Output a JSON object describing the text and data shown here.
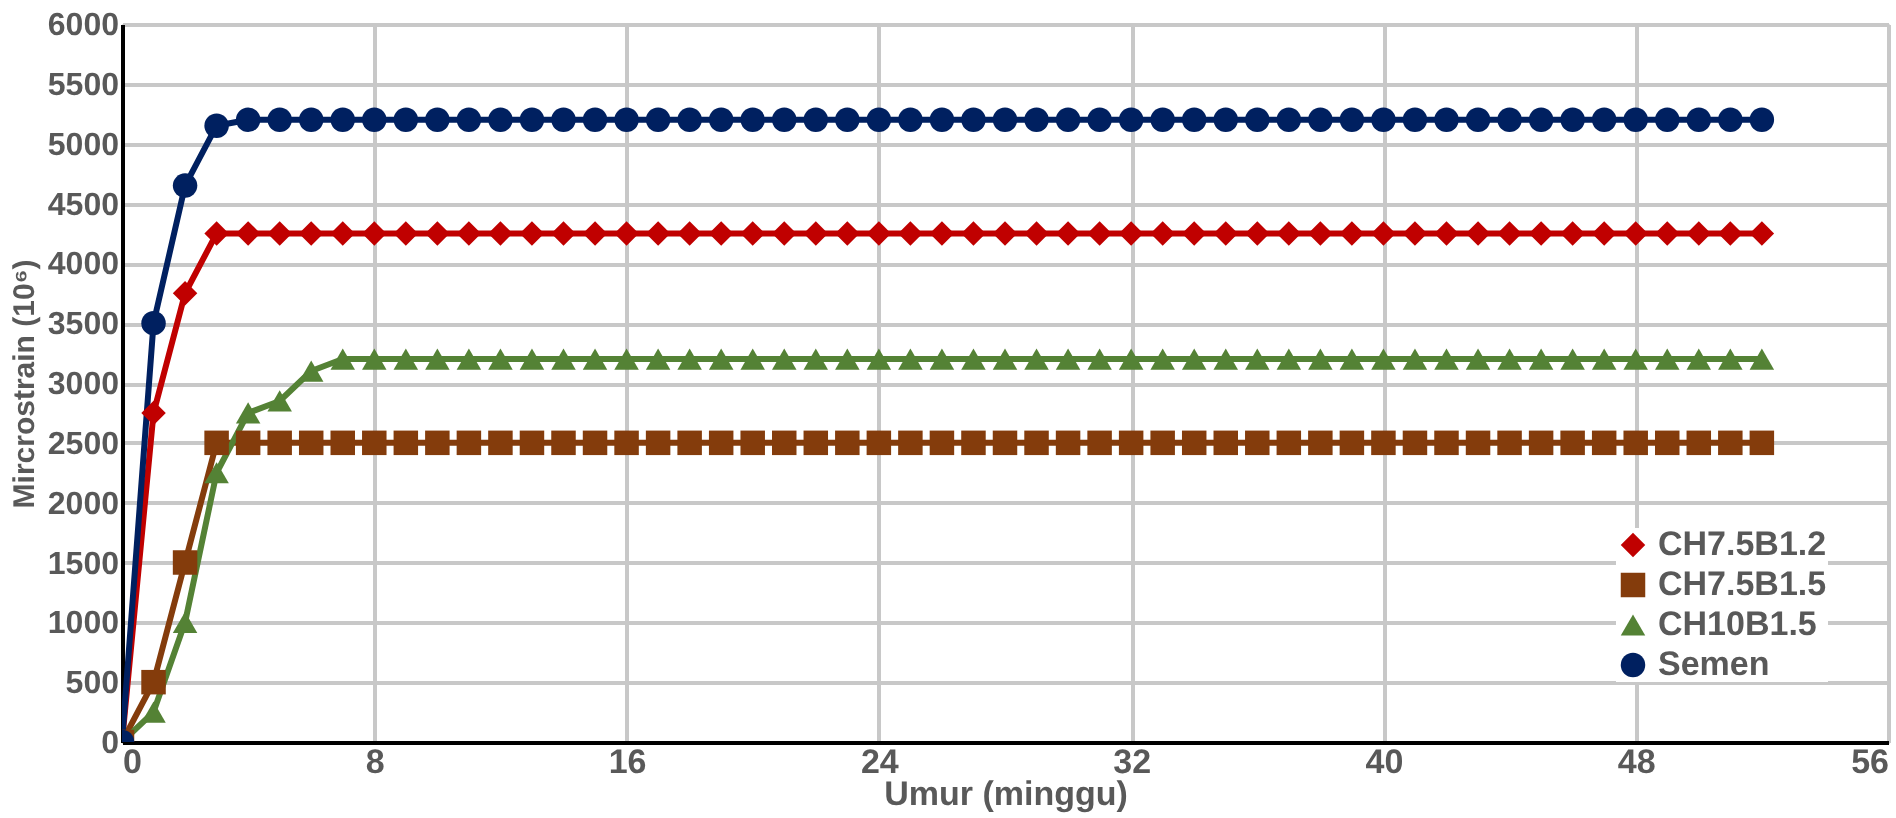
{
  "chart_data": {
    "type": "line",
    "xlabel": "Umur (minggu)",
    "ylabel": "Mircrostrain (10⁶)",
    "x": [
      0,
      1,
      2,
      3,
      4,
      5,
      6,
      7,
      8,
      9,
      10,
      11,
      12,
      13,
      14,
      15,
      16,
      17,
      18,
      19,
      20,
      21,
      22,
      23,
      24,
      25,
      26,
      27,
      28,
      29,
      30,
      31,
      32,
      33,
      34,
      35,
      36,
      37,
      38,
      39,
      40,
      41,
      42,
      43,
      44,
      45,
      46,
      47,
      48,
      49,
      50,
      51,
      52
    ],
    "series": [
      {
        "name": "CH7.5B1.2",
        "color": "#c00000",
        "marker": "diamond",
        "values": [
          0,
          2750,
          3750,
          4250,
          4250,
          4250,
          4250,
          4250,
          4250,
          4250,
          4250,
          4250,
          4250,
          4250,
          4250,
          4250,
          4250,
          4250,
          4250,
          4250,
          4250,
          4250,
          4250,
          4250,
          4250,
          4250,
          4250,
          4250,
          4250,
          4250,
          4250,
          4250,
          4250,
          4250,
          4250,
          4250,
          4250,
          4250,
          4250,
          4250,
          4250,
          4250,
          4250,
          4250,
          4250,
          4250,
          4250,
          4250,
          4250,
          4250,
          4250,
          4250,
          4250
        ]
      },
      {
        "name": "CH7.5B1.5",
        "color": "#843c0c",
        "marker": "square",
        "values": [
          0,
          500,
          1500,
          2500,
          2500,
          2500,
          2500,
          2500,
          2500,
          2500,
          2500,
          2500,
          2500,
          2500,
          2500,
          2500,
          2500,
          2500,
          2500,
          2500,
          2500,
          2500,
          2500,
          2500,
          2500,
          2500,
          2500,
          2500,
          2500,
          2500,
          2500,
          2500,
          2500,
          2500,
          2500,
          2500,
          2500,
          2500,
          2500,
          2500,
          2500,
          2500,
          2500,
          2500,
          2500,
          2500,
          2500,
          2500,
          2500,
          2500,
          2500,
          2500,
          2500
        ]
      },
      {
        "name": "CH10B1.5",
        "color": "#548235",
        "marker": "triangle",
        "values": [
          0,
          250,
          1000,
          2250,
          2750,
          2850,
          3100,
          3200,
          3200,
          3200,
          3200,
          3200,
          3200,
          3200,
          3200,
          3200,
          3200,
          3200,
          3200,
          3200,
          3200,
          3200,
          3200,
          3200,
          3200,
          3200,
          3200,
          3200,
          3200,
          3200,
          3200,
          3200,
          3200,
          3200,
          3200,
          3200,
          3200,
          3200,
          3200,
          3200,
          3200,
          3200,
          3200,
          3200,
          3200,
          3200,
          3200,
          3200,
          3200,
          3200,
          3200,
          3200,
          3200
        ]
      },
      {
        "name": "Semen",
        "color": "#002060",
        "marker": "circle",
        "values": [
          0,
          3500,
          4650,
          5150,
          5200,
          5200,
          5200,
          5200,
          5200,
          5200,
          5200,
          5200,
          5200,
          5200,
          5200,
          5200,
          5200,
          5200,
          5200,
          5200,
          5200,
          5200,
          5200,
          5200,
          5200,
          5200,
          5200,
          5200,
          5200,
          5200,
          5200,
          5200,
          5200,
          5200,
          5200,
          5200,
          5200,
          5200,
          5200,
          5200,
          5200,
          5200,
          5200,
          5200,
          5200,
          5200,
          5200,
          5200,
          5200,
          5200,
          5200,
          5200,
          5200
        ]
      }
    ],
    "xlim": [
      0,
      56
    ],
    "xticks": [
      0,
      8,
      16,
      24,
      32,
      40,
      48,
      56
    ],
    "ylim": [
      0,
      6000
    ],
    "yticks": [
      0,
      500,
      1000,
      1500,
      2000,
      2500,
      3000,
      3500,
      4000,
      4500,
      5000,
      5500,
      6000
    ],
    "grid": true,
    "legend": "bottom right",
    "line_style": "solid"
  }
}
